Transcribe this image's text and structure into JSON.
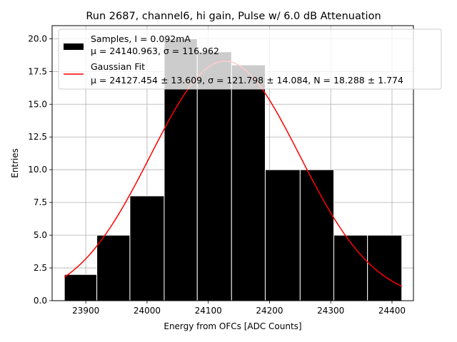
{
  "chart_data": {
    "type": "bar",
    "title": "Run 2687, channel6, hi gain, Pulse w/ 6.0 dB Attenuation",
    "xlabel": "Energy from OFCs [ADC Counts]",
    "ylabel": "Entries",
    "xlim": [
      23845,
      24435
    ],
    "ylim": [
      0,
      21
    ],
    "grid": true,
    "xticks": [
      23900,
      24000,
      24100,
      24200,
      24300,
      24400
    ],
    "yticks": [
      0.0,
      2.5,
      5.0,
      7.5,
      10.0,
      12.5,
      15.0,
      17.5,
      20.0
    ],
    "bin_edges": [
      23865,
      23918,
      23972,
      24028,
      24082,
      24138,
      24193,
      24250,
      24305,
      24360,
      24416
    ],
    "values": [
      2,
      5,
      8,
      20,
      19,
      18,
      10,
      10,
      5,
      5
    ],
    "hist_color": "#000000",
    "fit": {
      "mu": 24127.454,
      "sigma": 121.798,
      "N": 18.288,
      "color": "#ff0000",
      "x_range": [
        23865,
        24416
      ]
    },
    "legend": {
      "position": "top-right",
      "samples_line1": "Samples, I = 0.092mA",
      "samples_line2": "μ = 24140.963, σ = 116.962",
      "fit_line1": "Gaussian Fit",
      "fit_line2": "μ = 24127.454 ± 13.609, σ = 121.798 ± 14.084, N = 18.288 ± 1.774"
    }
  }
}
